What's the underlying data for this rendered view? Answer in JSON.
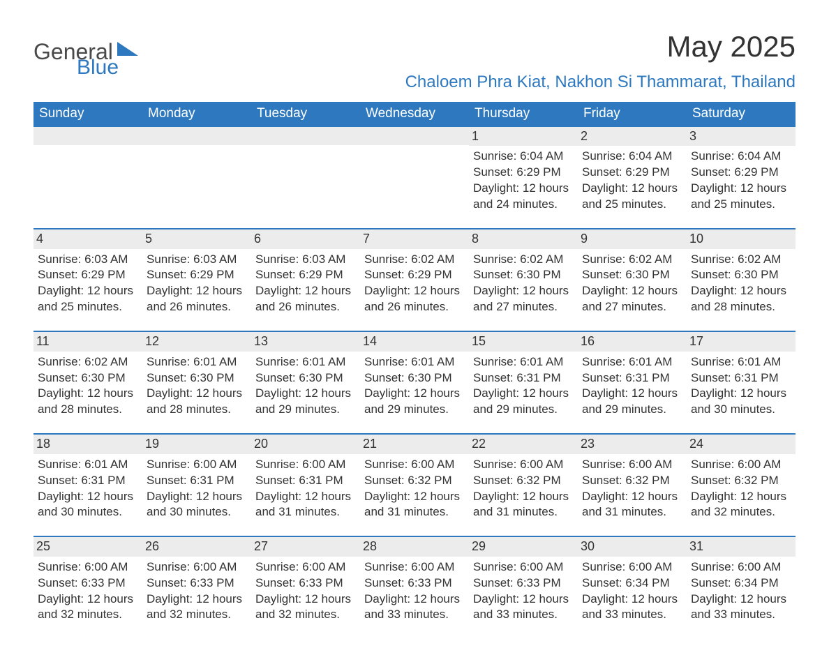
{
  "logo": {
    "general": "General",
    "blue": "Blue",
    "tri_color": "#2d78be"
  },
  "title": "May 2025",
  "location": "Chaloem Phra Kiat, Nakhon Si Thammarat, Thailand",
  "colors": {
    "header_bg": "#2d78be",
    "header_fg": "#ffffff",
    "daybar_bg": "#ececec",
    "daybar_border": "#2d78be",
    "text": "#333333",
    "accent": "#2d78be",
    "page_bg": "#ffffff"
  },
  "days_of_week": [
    "Sunday",
    "Monday",
    "Tuesday",
    "Wednesday",
    "Thursday",
    "Friday",
    "Saturday"
  ],
  "labels": {
    "sunrise": "Sunrise:",
    "sunset": "Sunset:",
    "daylight": "Daylight:"
  },
  "weeks": [
    [
      null,
      null,
      null,
      null,
      {
        "n": "1",
        "sunrise": "6:04 AM",
        "sunset": "6:29 PM",
        "daylight": "12 hours and 24 minutes."
      },
      {
        "n": "2",
        "sunrise": "6:04 AM",
        "sunset": "6:29 PM",
        "daylight": "12 hours and 25 minutes."
      },
      {
        "n": "3",
        "sunrise": "6:04 AM",
        "sunset": "6:29 PM",
        "daylight": "12 hours and 25 minutes."
      }
    ],
    [
      {
        "n": "4",
        "sunrise": "6:03 AM",
        "sunset": "6:29 PM",
        "daylight": "12 hours and 25 minutes."
      },
      {
        "n": "5",
        "sunrise": "6:03 AM",
        "sunset": "6:29 PM",
        "daylight": "12 hours and 26 minutes."
      },
      {
        "n": "6",
        "sunrise": "6:03 AM",
        "sunset": "6:29 PM",
        "daylight": "12 hours and 26 minutes."
      },
      {
        "n": "7",
        "sunrise": "6:02 AM",
        "sunset": "6:29 PM",
        "daylight": "12 hours and 26 minutes."
      },
      {
        "n": "8",
        "sunrise": "6:02 AM",
        "sunset": "6:30 PM",
        "daylight": "12 hours and 27 minutes."
      },
      {
        "n": "9",
        "sunrise": "6:02 AM",
        "sunset": "6:30 PM",
        "daylight": "12 hours and 27 minutes."
      },
      {
        "n": "10",
        "sunrise": "6:02 AM",
        "sunset": "6:30 PM",
        "daylight": "12 hours and 28 minutes."
      }
    ],
    [
      {
        "n": "11",
        "sunrise": "6:02 AM",
        "sunset": "6:30 PM",
        "daylight": "12 hours and 28 minutes."
      },
      {
        "n": "12",
        "sunrise": "6:01 AM",
        "sunset": "6:30 PM",
        "daylight": "12 hours and 28 minutes."
      },
      {
        "n": "13",
        "sunrise": "6:01 AM",
        "sunset": "6:30 PM",
        "daylight": "12 hours and 29 minutes."
      },
      {
        "n": "14",
        "sunrise": "6:01 AM",
        "sunset": "6:30 PM",
        "daylight": "12 hours and 29 minutes."
      },
      {
        "n": "15",
        "sunrise": "6:01 AM",
        "sunset": "6:31 PM",
        "daylight": "12 hours and 29 minutes."
      },
      {
        "n": "16",
        "sunrise": "6:01 AM",
        "sunset": "6:31 PM",
        "daylight": "12 hours and 29 minutes."
      },
      {
        "n": "17",
        "sunrise": "6:01 AM",
        "sunset": "6:31 PM",
        "daylight": "12 hours and 30 minutes."
      }
    ],
    [
      {
        "n": "18",
        "sunrise": "6:01 AM",
        "sunset": "6:31 PM",
        "daylight": "12 hours and 30 minutes."
      },
      {
        "n": "19",
        "sunrise": "6:00 AM",
        "sunset": "6:31 PM",
        "daylight": "12 hours and 30 minutes."
      },
      {
        "n": "20",
        "sunrise": "6:00 AM",
        "sunset": "6:31 PM",
        "daylight": "12 hours and 31 minutes."
      },
      {
        "n": "21",
        "sunrise": "6:00 AM",
        "sunset": "6:32 PM",
        "daylight": "12 hours and 31 minutes."
      },
      {
        "n": "22",
        "sunrise": "6:00 AM",
        "sunset": "6:32 PM",
        "daylight": "12 hours and 31 minutes."
      },
      {
        "n": "23",
        "sunrise": "6:00 AM",
        "sunset": "6:32 PM",
        "daylight": "12 hours and 31 minutes."
      },
      {
        "n": "24",
        "sunrise": "6:00 AM",
        "sunset": "6:32 PM",
        "daylight": "12 hours and 32 minutes."
      }
    ],
    [
      {
        "n": "25",
        "sunrise": "6:00 AM",
        "sunset": "6:33 PM",
        "daylight": "12 hours and 32 minutes."
      },
      {
        "n": "26",
        "sunrise": "6:00 AM",
        "sunset": "6:33 PM",
        "daylight": "12 hours and 32 minutes."
      },
      {
        "n": "27",
        "sunrise": "6:00 AM",
        "sunset": "6:33 PM",
        "daylight": "12 hours and 32 minutes."
      },
      {
        "n": "28",
        "sunrise": "6:00 AM",
        "sunset": "6:33 PM",
        "daylight": "12 hours and 33 minutes."
      },
      {
        "n": "29",
        "sunrise": "6:00 AM",
        "sunset": "6:33 PM",
        "daylight": "12 hours and 33 minutes."
      },
      {
        "n": "30",
        "sunrise": "6:00 AM",
        "sunset": "6:34 PM",
        "daylight": "12 hours and 33 minutes."
      },
      {
        "n": "31",
        "sunrise": "6:00 AM",
        "sunset": "6:34 PM",
        "daylight": "12 hours and 33 minutes."
      }
    ]
  ]
}
